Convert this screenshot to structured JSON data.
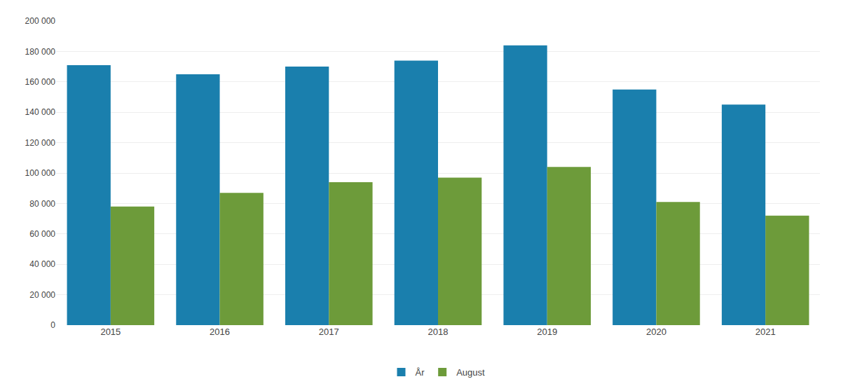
{
  "chart_data": {
    "type": "bar",
    "categories": [
      "2015",
      "2016",
      "2017",
      "2018",
      "2019",
      "2020",
      "2021"
    ],
    "series": [
      {
        "name": "År",
        "color": "#1a7fad",
        "values": [
          171000,
          165000,
          170000,
          174000,
          184000,
          155000,
          145000
        ]
      },
      {
        "name": "August",
        "color": "#6d9b3a",
        "values": [
          78000,
          87000,
          94000,
          97000,
          104000,
          81000,
          72000
        ]
      }
    ],
    "ylim": [
      0,
      200000
    ],
    "yticks": [
      0,
      {
        "value": 20000,
        "label": "20 000"
      },
      {
        "value": 40000,
        "label": "40 000"
      },
      {
        "value": 60000,
        "label": "60 000"
      },
      {
        "value": 80000,
        "label": "80 000"
      },
      {
        "value": 100000,
        "label": "100 000"
      },
      {
        "value": 120000,
        "label": "120 000"
      },
      {
        "value": 140000,
        "label": "140 000"
      },
      {
        "value": 160000,
        "label": "160 000"
      },
      {
        "value": 180000,
        "label": "180 000"
      },
      {
        "value": 200000,
        "label": "200 000"
      }
    ],
    "grid": true,
    "legend": "bottom"
  }
}
